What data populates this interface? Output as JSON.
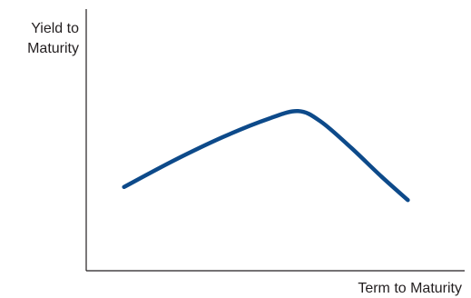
{
  "chart_data": {
    "type": "line",
    "title": "",
    "xlabel": "Term to Maturity",
    "ylabel": [
      "Yield to",
      "Maturity"
    ],
    "xlim": [
      0,
      10
    ],
    "ylim": [
      0,
      10
    ],
    "grid": false,
    "legend": "none",
    "series": [
      {
        "color": "#0d4a8a",
        "points": [
          [
            1.0,
            3.2
          ],
          [
            2.3,
            4.2
          ],
          [
            3.6,
            5.1
          ],
          [
            4.8,
            5.8
          ],
          [
            5.6,
            6.1
          ],
          [
            6.2,
            5.7
          ],
          [
            7.0,
            4.7
          ],
          [
            7.8,
            3.6
          ],
          [
            8.5,
            2.7
          ]
        ]
      }
    ],
    "axis_color": "#231f20"
  }
}
